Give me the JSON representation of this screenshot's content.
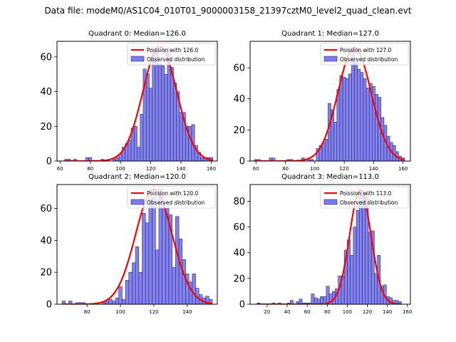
{
  "figure": {
    "suptitle": "Data file: modeM0/AS1C04_010T01_9000003158_21397cztM0_level2_quad_clean.evt"
  },
  "colors": {
    "bar_fill": "#7b7bf0",
    "bar_edge": "#2b2b6b",
    "curve": "#ff0000"
  },
  "chart_data": [
    {
      "type": "bar",
      "title": "Quadrant 0: Median=126.0",
      "legend": [
        "Poission with 126.0",
        "Observed distribution"
      ],
      "legend_position": "top-right",
      "xlim": [
        58,
        164
      ],
      "ylim": [
        0,
        69
      ],
      "xticks": [
        60,
        80,
        100,
        120,
        140,
        160
      ],
      "yticks": [
        0,
        20,
        40,
        60
      ],
      "bin_width": 2,
      "bins_start": [
        63,
        65,
        69,
        77,
        79,
        87,
        95,
        97,
        99,
        101,
        103,
        105,
        107,
        109,
        111,
        113,
        115,
        117,
        119,
        121,
        123,
        125,
        127,
        129,
        131,
        133,
        135,
        137,
        139,
        141,
        143,
        145,
        147,
        149,
        151,
        153,
        155,
        157,
        159
      ],
      "values": [
        1,
        1,
        1,
        2,
        2,
        1,
        1,
        2,
        4,
        8,
        10,
        12,
        19,
        20,
        8,
        27,
        53,
        50,
        42,
        63,
        65,
        56,
        55,
        50,
        65,
        54,
        45,
        40,
        28,
        28,
        20,
        20,
        21,
        9,
        5,
        2,
        2,
        2,
        2
      ],
      "poisson_mean": 126.0,
      "poisson_peak": 66
    },
    {
      "type": "bar",
      "title": "Quadrant 1: Median=127.0",
      "legend": [
        "Poission with 127.0",
        "Observed distribution"
      ],
      "legend_position": "top-right",
      "xlim": [
        56,
        165
      ],
      "ylim": [
        0,
        77
      ],
      "xticks": [
        60,
        80,
        100,
        120,
        140,
        160
      ],
      "yticks": [
        0,
        20,
        40,
        60
      ],
      "bin_width": 2,
      "bins_start": [
        59,
        61,
        69,
        71,
        81,
        83,
        91,
        95,
        97,
        101,
        103,
        105,
        107,
        109,
        111,
        113,
        115,
        117,
        119,
        121,
        123,
        125,
        127,
        129,
        131,
        133,
        135,
        137,
        139,
        141,
        143,
        145,
        147,
        149,
        151,
        153,
        155,
        157,
        159
      ],
      "values": [
        1,
        1,
        2,
        2,
        1,
        1,
        2,
        1,
        1,
        8,
        10,
        12,
        14,
        37,
        33,
        25,
        46,
        55,
        54,
        53,
        56,
        72,
        64,
        59,
        57,
        53,
        47,
        50,
        48,
        43,
        41,
        28,
        23,
        16,
        12,
        10,
        6,
        3,
        2
      ],
      "poisson_mean": 127.0,
      "poisson_peak": 73
    },
    {
      "type": "bar",
      "title": "Quadrant 2: Median=120.0",
      "legend": [
        "Poission with 120.0",
        "Observed distribution"
      ],
      "legend_position": "top-right",
      "xlim": [
        62,
        158
      ],
      "ylim": [
        0,
        75
      ],
      "xticks": [
        80,
        100,
        120,
        140
      ],
      "yticks": [
        0,
        20,
        40,
        60
      ],
      "bin_width": 2,
      "bins_start": [
        65,
        69,
        73,
        75,
        77,
        89,
        91,
        93,
        95,
        97,
        99,
        101,
        103,
        105,
        107,
        109,
        111,
        113,
        115,
        117,
        119,
        121,
        123,
        125,
        127,
        129,
        131,
        133,
        135,
        137,
        139,
        141,
        143,
        145,
        147,
        149,
        151,
        153
      ],
      "values": [
        2,
        2,
        1,
        1,
        1,
        1,
        2,
        3,
        2,
        4,
        11,
        3,
        15,
        20,
        26,
        36,
        20,
        57,
        51,
        66,
        67,
        34,
        72,
        62,
        60,
        56,
        23,
        55,
        41,
        28,
        19,
        14,
        19,
        10,
        6,
        4,
        5,
        3
      ],
      "poisson_mean": 120.0,
      "poisson_peak": 72
    },
    {
      "type": "bar",
      "title": "Quadrant 3: Median=113.0",
      "legend": [
        "Poission with 113.0",
        "Observed distribution"
      ],
      "legend_position": "top-right",
      "xlim": [
        3,
        163
      ],
      "ylim": [
        0,
        93
      ],
      "xticks": [
        20,
        40,
        60,
        80,
        100,
        120,
        140,
        160
      ],
      "yticks": [
        0,
        20,
        40,
        60,
        80
      ],
      "bin_width": 3,
      "bins_start": [
        10,
        25,
        31,
        40,
        43,
        49,
        52,
        55,
        58,
        61,
        64,
        67,
        70,
        73,
        76,
        79,
        82,
        85,
        88,
        91,
        94,
        97,
        100,
        103,
        106,
        109,
        112,
        115,
        118,
        121,
        124,
        127,
        130,
        133,
        136,
        139,
        142,
        145,
        148,
        151
      ],
      "values": [
        1,
        1,
        1,
        1,
        3,
        2,
        4,
        1,
        1,
        1,
        8,
        5,
        4,
        6,
        6,
        14,
        8,
        10,
        12,
        22,
        22,
        42,
        50,
        38,
        60,
        73,
        88,
        85,
        83,
        56,
        57,
        24,
        38,
        14,
        15,
        6,
        5,
        3,
        3,
        2
      ],
      "poisson_mean": 113.0,
      "poisson_peak": 89
    }
  ]
}
